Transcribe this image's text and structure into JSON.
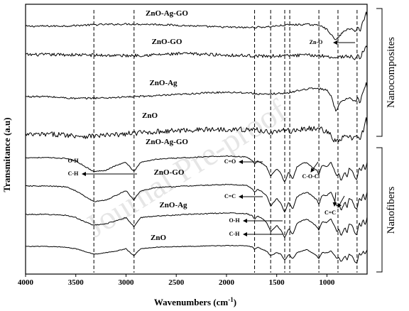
{
  "chart_data": {
    "type": "line",
    "xlabel": "Wavenumbers (cm",
    "xlabel_superscript": "-1",
    "xlabel_suffix": ")",
    "ylabel": "Transmitance (a.u)",
    "xlim": [
      4000,
      600
    ],
    "x_reversed": true,
    "x_ticks": [
      "4000",
      "3500",
      "3000",
      "2500",
      "2000",
      "1500",
      "1000"
    ],
    "y_ticks": "none",
    "grid": false,
    "watermark": "Journal Pre-proof",
    "groups": [
      {
        "name": "Nanocomposites",
        "series": [
          "ZnO-Ag-GO",
          "ZnO-GO",
          "ZnO-Ag",
          "ZnO"
        ]
      },
      {
        "name": "Nanofibers",
        "series": [
          "ZnO-Ag-GO",
          "ZnO-GO",
          "ZnO-Ag",
          "ZnO"
        ]
      }
    ],
    "reference_lines_cm": [
      3320,
      2920,
      1720,
      1560,
      1420,
      1370,
      1080,
      890,
      700
    ],
    "series": [
      {
        "name": "ZnO-Ag-GO",
        "group": "Nanocomposites",
        "noise": 0.14,
        "x": [
          4000,
          3600,
          3300,
          3000,
          2700,
          2400,
          2100,
          1800,
          1600,
          1400,
          1200,
          1050,
          980,
          940,
          910,
          880,
          820,
          760,
          720,
          690,
          670,
          650,
          630,
          610,
          600
        ],
        "y": [
          0.0,
          0.05,
          0.25,
          0.35,
          0.3,
          0.1,
          -0.1,
          -0.2,
          -0.1,
          0.2,
          0.3,
          0.1,
          -0.8,
          -1.7,
          -2.2,
          -1.6,
          -0.6,
          -0.4,
          -0.8,
          0.0,
          -1.0,
          0.5,
          1.0,
          2.2,
          1.5
        ]
      },
      {
        "name": "ZnO-GO",
        "group": "Nanocomposites",
        "noise": 0.32,
        "x": [
          4000,
          3600,
          3300,
          3000,
          2700,
          2400,
          2100,
          1800,
          1600,
          1400,
          1200,
          1050,
          980,
          940,
          910,
          880,
          820,
          760,
          720,
          690,
          670,
          650,
          630,
          610,
          600
        ],
        "y": [
          0.0,
          0.0,
          -0.1,
          -0.2,
          0.0,
          0.2,
          0.0,
          -0.2,
          -0.3,
          -0.2,
          -0.1,
          -0.2,
          -0.4,
          -0.5,
          -0.6,
          -0.5,
          -0.3,
          -0.4,
          -0.8,
          -0.2,
          -1.0,
          0.3,
          1.0,
          2.0,
          1.2
        ]
      },
      {
        "name": "ZnO-Ag",
        "group": "Nanocomposites",
        "noise": 0.14,
        "x": [
          4000,
          3800,
          3500,
          3200,
          2900,
          2600,
          2300,
          2000,
          1800,
          1600,
          1500,
          1400,
          1300,
          1200,
          1100,
          1050,
          1000,
          960,
          930,
          910,
          890,
          860,
          800,
          760,
          720,
          690,
          670,
          650,
          630,
          610,
          600
        ],
        "y": [
          0.0,
          0.0,
          -0.3,
          -0.2,
          0.0,
          0.2,
          0.5,
          0.7,
          0.6,
          0.3,
          0.5,
          0.5,
          0.9,
          1.2,
          1.3,
          1.2,
          1.0,
          0.2,
          -1.4,
          -2.2,
          -1.7,
          -0.7,
          -0.3,
          -0.3,
          -0.8,
          0.0,
          -1.2,
          0.4,
          1.0,
          2.2,
          1.5
        ]
      },
      {
        "name": "ZnO",
        "group": "Nanocomposites",
        "noise": 0.4,
        "x": [
          4000,
          3700,
          3400,
          3100,
          2900,
          2600,
          2300,
          2000,
          1700,
          1550,
          1450,
          1350,
          1250,
          1150,
          1050,
          980,
          940,
          910,
          880,
          830,
          780,
          740,
          710,
          690,
          670,
          650,
          630,
          610,
          600
        ],
        "y": [
          0.0,
          0.1,
          -0.2,
          0.0,
          0.3,
          0.6,
          0.8,
          0.9,
          0.8,
          0.4,
          0.7,
          0.6,
          0.9,
          1.0,
          0.9,
          0.2,
          -0.5,
          -1.2,
          -0.9,
          -0.3,
          -0.2,
          -0.8,
          -0.2,
          0.0,
          -1.2,
          0.4,
          1.0,
          2.4,
          1.6
        ]
      },
      {
        "name": "ZnO-Ag-GO",
        "group": "Nanofibers",
        "noise": 0.03,
        "x": [
          4000,
          3800,
          3600,
          3500,
          3400,
          3320,
          3200,
          3100,
          3000,
          2960,
          2920,
          2880,
          2850,
          2700,
          2400,
          2000,
          1800,
          1740,
          1720,
          1690,
          1640,
          1600,
          1560,
          1500,
          1460,
          1420,
          1380,
          1340,
          1300,
          1250,
          1200,
          1150,
          1100,
          1080,
          1050,
          1000,
          960,
          920,
          900,
          880,
          860,
          820,
          800,
          780,
          750,
          720,
          700,
          680,
          660,
          640,
          620,
          600
        ],
        "y": [
          0.0,
          0.0,
          -0.05,
          -0.2,
          -0.6,
          -0.9,
          -0.8,
          -0.5,
          -0.3,
          -0.6,
          -0.9,
          -0.5,
          -0.3,
          -0.1,
          0.0,
          0.1,
          0.05,
          -0.2,
          -0.4,
          -0.2,
          -0.4,
          -0.6,
          -1.2,
          -0.7,
          -1.0,
          -1.6,
          -0.9,
          -1.4,
          -0.6,
          -0.4,
          -0.3,
          -0.6,
          -0.8,
          -1.1,
          -0.5,
          -0.6,
          -0.3,
          -0.9,
          -1.2,
          -1.0,
          -1.5,
          -0.9,
          -1.3,
          -0.7,
          -0.8,
          -1.3,
          -1.4,
          -0.6,
          -0.9,
          -0.4,
          -0.8,
          -0.3
        ]
      },
      {
        "name": "ZnO-GO",
        "group": "Nanofibers",
        "noise": 0.03,
        "x": [
          4000,
          3800,
          3600,
          3500,
          3400,
          3320,
          3200,
          3100,
          3000,
          2960,
          2920,
          2880,
          2850,
          2700,
          2400,
          2000,
          1800,
          1740,
          1720,
          1690,
          1640,
          1600,
          1560,
          1500,
          1460,
          1420,
          1380,
          1340,
          1300,
          1250,
          1200,
          1150,
          1100,
          1080,
          1050,
          1000,
          960,
          920,
          900,
          880,
          860,
          820,
          800,
          780,
          750,
          720,
          700,
          680,
          660,
          640,
          620,
          600
        ],
        "y": [
          0.0,
          0.0,
          -0.05,
          -0.3,
          -0.7,
          -1.0,
          -0.9,
          -0.6,
          -0.3,
          -0.6,
          -0.9,
          -0.5,
          -0.3,
          -0.1,
          0.0,
          0.1,
          0.05,
          -0.2,
          -0.4,
          -0.2,
          -0.4,
          -0.6,
          -1.3,
          -0.8,
          -1.1,
          -1.7,
          -1.0,
          -1.5,
          -0.7,
          -0.5,
          -0.4,
          -0.6,
          -0.9,
          -1.2,
          -0.6,
          -0.6,
          -0.4,
          -1.0,
          -1.3,
          -1.1,
          -1.6,
          -1.0,
          -1.4,
          -0.8,
          -0.9,
          -1.4,
          -1.5,
          -0.7,
          -1.0,
          -0.5,
          -0.9,
          -0.4
        ]
      },
      {
        "name": "ZnO-Ag",
        "group": "Nanofibers",
        "noise": 0.03,
        "x": [
          4000,
          3800,
          3600,
          3500,
          3400,
          3320,
          3200,
          3100,
          3000,
          2960,
          2920,
          2880,
          2850,
          2700,
          2400,
          2000,
          1800,
          1740,
          1720,
          1690,
          1640,
          1600,
          1560,
          1500,
          1460,
          1420,
          1380,
          1340,
          1300,
          1250,
          1200,
          1150,
          1100,
          1080,
          1050,
          1000,
          960,
          920,
          900,
          880,
          860,
          820,
          800,
          780,
          750,
          720,
          700,
          680,
          660,
          640,
          620,
          600
        ],
        "y": [
          0.0,
          0.0,
          -0.05,
          -0.2,
          -0.5,
          -0.7,
          -0.6,
          -0.4,
          -0.2,
          -0.5,
          -0.8,
          -0.4,
          -0.2,
          -0.1,
          0.0,
          0.1,
          0.05,
          -0.1,
          -0.3,
          -0.1,
          -0.3,
          -0.5,
          -1.1,
          -0.7,
          -1.0,
          -1.5,
          -0.9,
          -1.3,
          -0.6,
          -0.4,
          -0.3,
          -0.5,
          -0.8,
          -1.0,
          -0.5,
          -0.5,
          -0.3,
          -0.8,
          -1.1,
          -0.9,
          -1.4,
          -0.8,
          -1.2,
          -0.6,
          -0.7,
          -1.2,
          -1.3,
          -0.5,
          -0.8,
          -0.3,
          -0.7,
          -0.2
        ]
      },
      {
        "name": "ZnO",
        "group": "Nanofibers",
        "noise": 0.02,
        "x": [
          4000,
          3800,
          3600,
          3500,
          3400,
          3320,
          3200,
          3100,
          3000,
          2960,
          2920,
          2880,
          2850,
          2700,
          2400,
          2000,
          1800,
          1740,
          1720,
          1690,
          1640,
          1600,
          1560,
          1500,
          1460,
          1420,
          1380,
          1340,
          1300,
          1250,
          1200,
          1150,
          1100,
          1080,
          1050,
          1000,
          960,
          920,
          900,
          880,
          860,
          820,
          800,
          780,
          750,
          720,
          700,
          680,
          660,
          640,
          620,
          600
        ],
        "y": [
          0.0,
          0.0,
          -0.05,
          -0.15,
          -0.35,
          -0.5,
          -0.4,
          -0.3,
          -0.15,
          -0.4,
          -0.6,
          -0.3,
          -0.15,
          -0.05,
          0.0,
          0.05,
          0.05,
          -0.05,
          -0.2,
          -0.05,
          -0.2,
          -0.3,
          -0.6,
          -0.4,
          -0.5,
          -0.9,
          -0.5,
          -0.8,
          -0.4,
          -0.3,
          -0.2,
          -0.4,
          -0.6,
          -0.8,
          -0.4,
          -0.4,
          -0.3,
          -0.6,
          -0.8,
          -0.7,
          -1.0,
          -0.6,
          -0.9,
          -0.5,
          -0.6,
          -1.0,
          -1.1,
          -0.4,
          -0.6,
          -0.3,
          -0.5,
          -0.2
        ]
      }
    ],
    "annotations": [
      {
        "id": "zn-o",
        "text": "Zn-O",
        "x": 910,
        "group": "Nanocomposites",
        "arrow": "left"
      },
      {
        "id": "fib-oh-1",
        "text": "O-H",
        "x": 3320,
        "group": "Nanofibers",
        "arrow": "none"
      },
      {
        "id": "fib-ch-1",
        "text": "C-H",
        "x": 2920,
        "group": "Nanofibers",
        "arrow": "left"
      },
      {
        "id": "fib-co",
        "text": "C=O",
        "x": 1720,
        "group": "Nanofibers",
        "arrow": "left"
      },
      {
        "id": "fib-coc",
        "text": "C-O-C",
        "x": 1080,
        "group": "Nanofibers",
        "arrow": "diagonal"
      },
      {
        "id": "fib-cc",
        "text": "C=C",
        "x": 1560,
        "group": "Nanofibers",
        "arrow": "left"
      },
      {
        "id": "fib-oh-2",
        "text": "O-H",
        "x": 1420,
        "group": "Nanofibers",
        "arrow": "left"
      },
      {
        "id": "fib-ch-2",
        "text": "C-H",
        "x": 1370,
        "group": "Nanofibers",
        "arrow": "left"
      },
      {
        "id": "fib-cc-2",
        "text": "C=C",
        "x": 890,
        "group": "Nanofibers",
        "arrow": "diagonal"
      }
    ]
  }
}
